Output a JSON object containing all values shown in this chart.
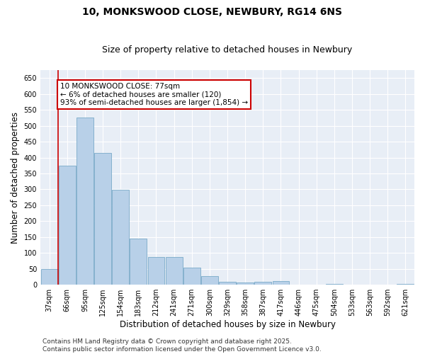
{
  "title": "10, MONKSWOOD CLOSE, NEWBURY, RG14 6NS",
  "subtitle": "Size of property relative to detached houses in Newbury",
  "xlabel": "Distribution of detached houses by size in Newbury",
  "ylabel": "Number of detached properties",
  "categories": [
    "37sqm",
    "66sqm",
    "95sqm",
    "125sqm",
    "154sqm",
    "183sqm",
    "212sqm",
    "241sqm",
    "271sqm",
    "300sqm",
    "329sqm",
    "358sqm",
    "387sqm",
    "417sqm",
    "446sqm",
    "475sqm",
    "504sqm",
    "533sqm",
    "563sqm",
    "592sqm",
    "621sqm"
  ],
  "values": [
    50,
    375,
    525,
    415,
    298,
    145,
    88,
    88,
    55,
    28,
    10,
    7,
    10,
    11,
    1,
    0,
    3,
    0,
    1,
    0,
    2
  ],
  "bar_color": "#b8d0e8",
  "bar_edge_color": "#7aaac8",
  "vline_x": 0.5,
  "vline_color": "#cc0000",
  "annotation_text": "10 MONKSWOOD CLOSE: 77sqm\n← 6% of detached houses are smaller (120)\n93% of semi-detached houses are larger (1,854) →",
  "annotation_box_color": "white",
  "annotation_box_edge_color": "#cc0000",
  "ylim": [
    0,
    675
  ],
  "yticks": [
    0,
    50,
    100,
    150,
    200,
    250,
    300,
    350,
    400,
    450,
    500,
    550,
    600,
    650
  ],
  "background_color": "#e8eef6",
  "footer_text": "Contains HM Land Registry data © Crown copyright and database right 2025.\nContains public sector information licensed under the Open Government Licence v3.0.",
  "title_fontsize": 10,
  "subtitle_fontsize": 9,
  "xlabel_fontsize": 8.5,
  "ylabel_fontsize": 8.5,
  "annotation_fontsize": 7.5,
  "tick_fontsize": 7,
  "footer_fontsize": 6.5
}
